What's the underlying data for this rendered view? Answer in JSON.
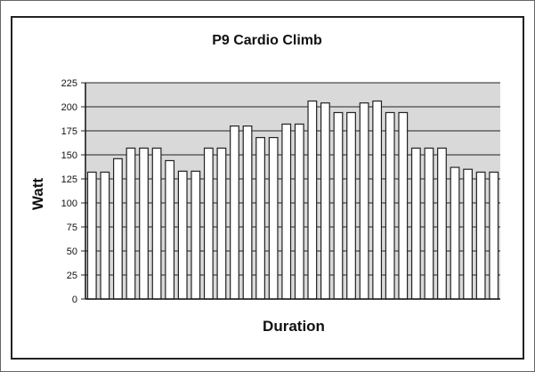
{
  "chart_data": {
    "type": "bar",
    "title": "P9 Cardio Climb",
    "xlabel": "Duration",
    "ylabel": "Watt",
    "ylim": [
      0,
      225
    ],
    "yticks": [
      0,
      25,
      50,
      75,
      100,
      125,
      150,
      175,
      200,
      225
    ],
    "grid": true,
    "legend": "none",
    "colors": {
      "bar_fill": "#ffffff",
      "bar_stroke": "#222222",
      "plot_background": "#d9d9d9",
      "gridline": "#222222"
    },
    "values": [
      132,
      132,
      146,
      157,
      157,
      157,
      144,
      133,
      133,
      157,
      157,
      180,
      180,
      168,
      168,
      182,
      182,
      206,
      204,
      194,
      194,
      204,
      206,
      194,
      194,
      157,
      157,
      157,
      137,
      135,
      132,
      132
    ]
  }
}
